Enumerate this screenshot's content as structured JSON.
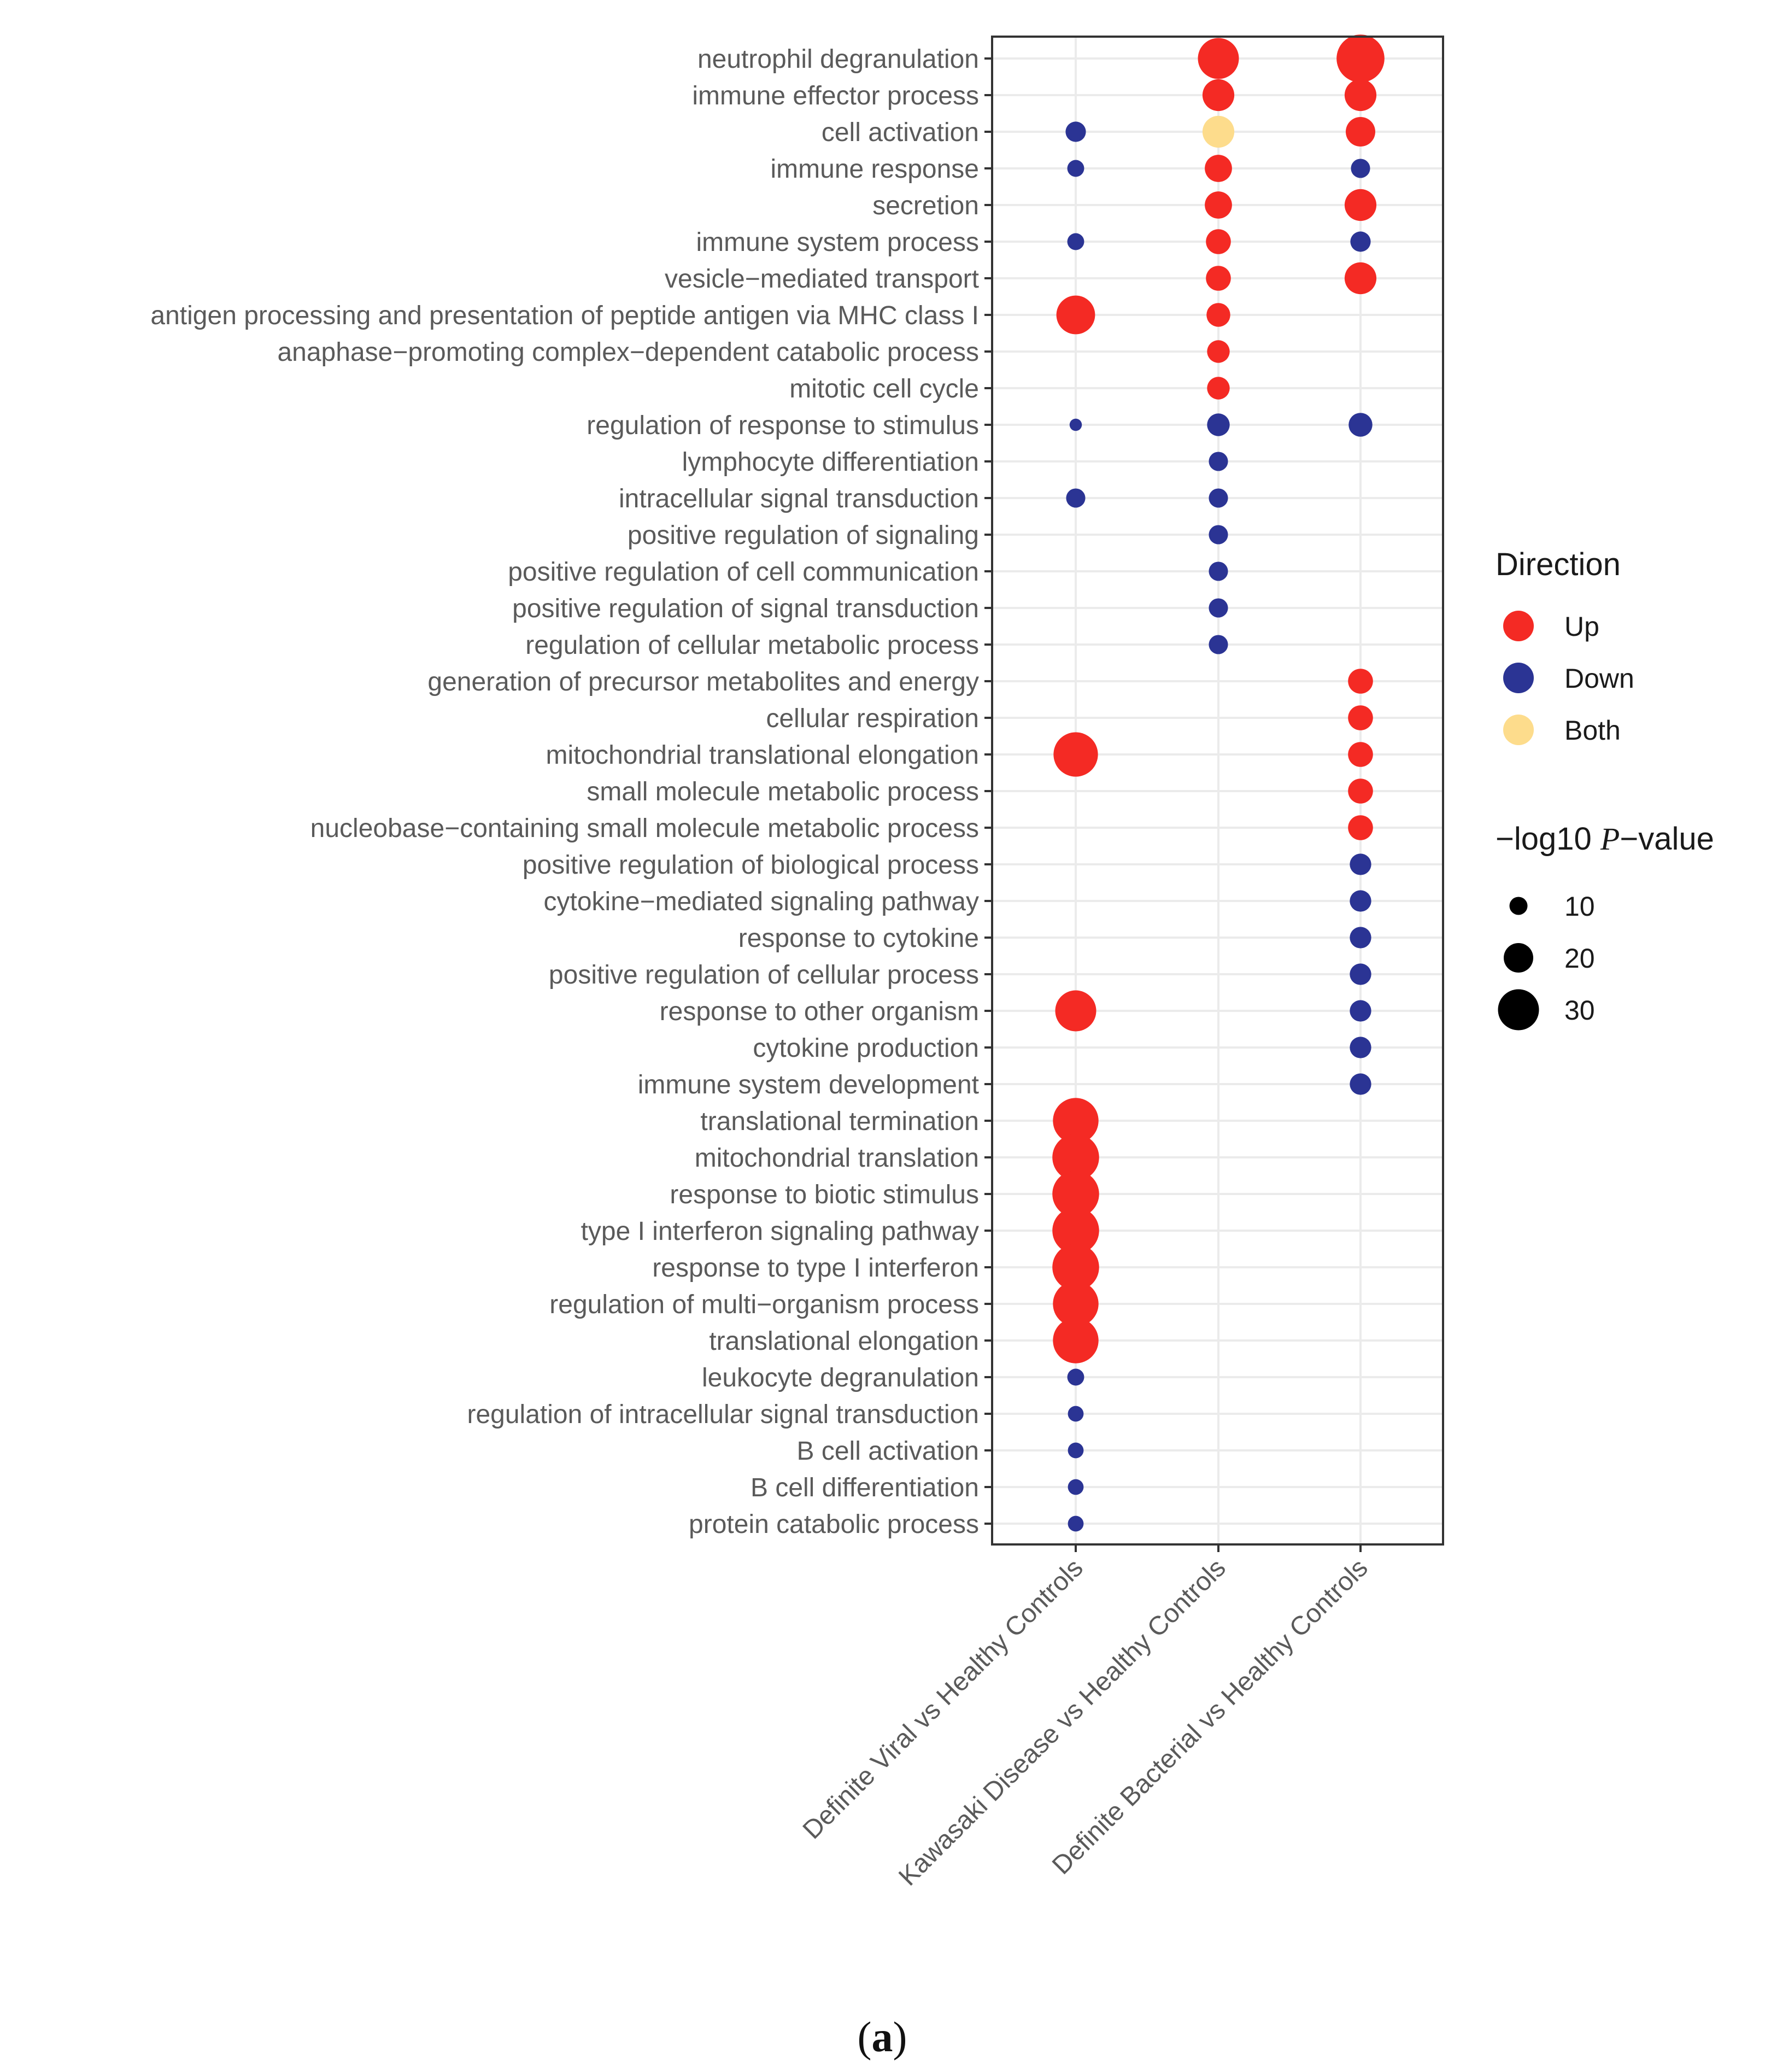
{
  "colors": {
    "up": "#f42a24",
    "down": "#2b3494",
    "both": "#fddc8c",
    "grid": "#ebebeb",
    "panel_border": "#333333",
    "tick": "#333333"
  },
  "caption": {
    "open": "(",
    "letter": "a",
    "close": ")"
  },
  "chart_data": {
    "type": "scatter",
    "subtype": "dot-plot",
    "title": "",
    "xlabel": "",
    "ylabel": "",
    "grid": true,
    "legend_position": "right",
    "comparisons": [
      "Definite Viral vs Healthy Controls",
      "Kawasaki Disease vs Healthy Controls",
      "Definite Bacterial vs Healthy Controls"
    ],
    "terms": [
      "neutrophil degranulation",
      "immune effector process",
      "cell activation",
      "immune response",
      "secretion",
      "immune system process",
      "vesicle−mediated transport",
      "antigen processing and presentation of peptide antigen via MHC class I",
      "anaphase−promoting complex−dependent catabolic process",
      "mitotic cell cycle",
      "regulation of response to stimulus",
      "lymphocyte differentiation",
      "intracellular signal transduction",
      "positive regulation of signaling",
      "positive regulation of cell communication",
      "positive regulation of signal transduction",
      "regulation of cellular metabolic process",
      "generation of precursor metabolites and energy",
      "cellular respiration",
      "mitochondrial translational elongation",
      "small molecule metabolic process",
      "nucleobase−containing small molecule metabolic process",
      "positive regulation of biological process",
      "cytokine−mediated signaling pathway",
      "response to cytokine",
      "positive regulation of cellular process",
      "response to other organism",
      "cytokine production",
      "immune system development",
      "translational termination",
      "mitochondrial translation",
      "response to biotic stimulus",
      "type I interferon signaling pathway",
      "response to type I interferon",
      "regulation of multi−organism process",
      "translational elongation",
      "leukocyte degranulation",
      "regulation of intracellular signal transduction",
      "B cell activation",
      "B cell differentiation",
      "protein catabolic process"
    ],
    "points": [
      {
        "term": "neutrophil degranulation",
        "comparison": "Kawasaki Disease vs Healthy Controls",
        "direction": "Up",
        "neg_log10_p": 30
      },
      {
        "term": "neutrophil degranulation",
        "comparison": "Definite Bacterial vs Healthy Controls",
        "direction": "Up",
        "neg_log10_p": 36
      },
      {
        "term": "immune effector process",
        "comparison": "Kawasaki Disease vs Healthy Controls",
        "direction": "Up",
        "neg_log10_p": 22
      },
      {
        "term": "immune effector process",
        "comparison": "Definite Bacterial vs Healthy Controls",
        "direction": "Up",
        "neg_log10_p": 22
      },
      {
        "term": "cell activation",
        "comparison": "Definite Viral vs Healthy Controls",
        "direction": "Down",
        "neg_log10_p": 12
      },
      {
        "term": "cell activation",
        "comparison": "Kawasaki Disease vs Healthy Controls",
        "direction": "Both",
        "neg_log10_p": 22
      },
      {
        "term": "cell activation",
        "comparison": "Definite Bacterial vs Healthy Controls",
        "direction": "Up",
        "neg_log10_p": 20
      },
      {
        "term": "immune response",
        "comparison": "Definite Viral vs Healthy Controls",
        "direction": "Down",
        "neg_log10_p": 9
      },
      {
        "term": "immune response",
        "comparison": "Kawasaki Disease vs Healthy Controls",
        "direction": "Up",
        "neg_log10_p": 18
      },
      {
        "term": "immune response",
        "comparison": "Definite Bacterial vs Healthy Controls",
        "direction": "Down",
        "neg_log10_p": 11
      },
      {
        "term": "secretion",
        "comparison": "Kawasaki Disease vs Healthy Controls",
        "direction": "Up",
        "neg_log10_p": 18
      },
      {
        "term": "secretion",
        "comparison": "Definite Bacterial vs Healthy Controls",
        "direction": "Up",
        "neg_log10_p": 22
      },
      {
        "term": "immune system process",
        "comparison": "Definite Viral vs Healthy Controls",
        "direction": "Down",
        "neg_log10_p": 9
      },
      {
        "term": "immune system process",
        "comparison": "Kawasaki Disease vs Healthy Controls",
        "direction": "Up",
        "neg_log10_p": 16
      },
      {
        "term": "immune system process",
        "comparison": "Definite Bacterial vs Healthy Controls",
        "direction": "Down",
        "neg_log10_p": 12
      },
      {
        "term": "vesicle−mediated transport",
        "comparison": "Kawasaki Disease vs Healthy Controls",
        "direction": "Up",
        "neg_log10_p": 16
      },
      {
        "term": "vesicle−mediated transport",
        "comparison": "Definite Bacterial vs Healthy Controls",
        "direction": "Up",
        "neg_log10_p": 22
      },
      {
        "term": "antigen processing and presentation of peptide antigen via MHC class I",
        "comparison": "Definite Viral vs Healthy Controls",
        "direction": "Up",
        "neg_log10_p": 28
      },
      {
        "term": "antigen processing and presentation of peptide antigen via MHC class I",
        "comparison": "Kawasaki Disease vs Healthy Controls",
        "direction": "Up",
        "neg_log10_p": 15
      },
      {
        "term": "anaphase−promoting complex−dependent catabolic process",
        "comparison": "Kawasaki Disease vs Healthy Controls",
        "direction": "Up",
        "neg_log10_p": 14
      },
      {
        "term": "mitotic cell cycle",
        "comparison": "Kawasaki Disease vs Healthy Controls",
        "direction": "Up",
        "neg_log10_p": 14
      },
      {
        "term": "regulation of response to stimulus",
        "comparison": "Definite Viral vs Healthy Controls",
        "direction": "Down",
        "neg_log10_p": 5
      },
      {
        "term": "regulation of response to stimulus",
        "comparison": "Kawasaki Disease vs Healthy Controls",
        "direction": "Down",
        "neg_log10_p": 14
      },
      {
        "term": "regulation of response to stimulus",
        "comparison": "Definite Bacterial vs Healthy Controls",
        "direction": "Down",
        "neg_log10_p": 15
      },
      {
        "term": "lymphocyte differentiation",
        "comparison": "Kawasaki Disease vs Healthy Controls",
        "direction": "Down",
        "neg_log10_p": 11
      },
      {
        "term": "intracellular signal transduction",
        "comparison": "Definite Viral vs Healthy Controls",
        "direction": "Down",
        "neg_log10_p": 11
      },
      {
        "term": "intracellular signal transduction",
        "comparison": "Kawasaki Disease vs Healthy Controls",
        "direction": "Down",
        "neg_log10_p": 11
      },
      {
        "term": "positive regulation of signaling",
        "comparison": "Kawasaki Disease vs Healthy Controls",
        "direction": "Down",
        "neg_log10_p": 11
      },
      {
        "term": "positive regulation of cell communication",
        "comparison": "Kawasaki Disease vs Healthy Controls",
        "direction": "Down",
        "neg_log10_p": 11
      },
      {
        "term": "positive regulation of signal transduction",
        "comparison": "Kawasaki Disease vs Healthy Controls",
        "direction": "Down",
        "neg_log10_p": 11
      },
      {
        "term": "regulation of cellular metabolic process",
        "comparison": "Kawasaki Disease vs Healthy Controls",
        "direction": "Down",
        "neg_log10_p": 11
      },
      {
        "term": "generation of precursor metabolites and energy",
        "comparison": "Definite Bacterial vs Healthy Controls",
        "direction": "Up",
        "neg_log10_p": 16
      },
      {
        "term": "cellular respiration",
        "comparison": "Definite Bacterial vs Healthy Controls",
        "direction": "Up",
        "neg_log10_p": 16
      },
      {
        "term": "mitochondrial translational elongation",
        "comparison": "Definite Viral vs Healthy Controls",
        "direction": "Up",
        "neg_log10_p": 33
      },
      {
        "term": "mitochondrial translational elongation",
        "comparison": "Definite Bacterial vs Healthy Controls",
        "direction": "Up",
        "neg_log10_p": 16
      },
      {
        "term": "small molecule metabolic process",
        "comparison": "Definite Bacterial vs Healthy Controls",
        "direction": "Up",
        "neg_log10_p": 16
      },
      {
        "term": "nucleobase−containing small molecule metabolic process",
        "comparison": "Definite Bacterial vs Healthy Controls",
        "direction": "Up",
        "neg_log10_p": 16
      },
      {
        "term": "positive regulation of biological process",
        "comparison": "Definite Bacterial vs Healthy Controls",
        "direction": "Down",
        "neg_log10_p": 13
      },
      {
        "term": "cytokine−mediated signaling pathway",
        "comparison": "Definite Bacterial vs Healthy Controls",
        "direction": "Down",
        "neg_log10_p": 13
      },
      {
        "term": "response to cytokine",
        "comparison": "Definite Bacterial vs Healthy Controls",
        "direction": "Down",
        "neg_log10_p": 13
      },
      {
        "term": "positive regulation of cellular process",
        "comparison": "Definite Bacterial vs Healthy Controls",
        "direction": "Down",
        "neg_log10_p": 13
      },
      {
        "term": "response to other organism",
        "comparison": "Definite Viral vs Healthy Controls",
        "direction": "Up",
        "neg_log10_p": 30
      },
      {
        "term": "response to other organism",
        "comparison": "Definite Bacterial vs Healthy Controls",
        "direction": "Down",
        "neg_log10_p": 13
      },
      {
        "term": "cytokine production",
        "comparison": "Definite Bacterial vs Healthy Controls",
        "direction": "Down",
        "neg_log10_p": 13
      },
      {
        "term": "immune system development",
        "comparison": "Definite Bacterial vs Healthy Controls",
        "direction": "Down",
        "neg_log10_p": 13
      },
      {
        "term": "translational termination",
        "comparison": "Definite Viral vs Healthy Controls",
        "direction": "Up",
        "neg_log10_p": 34
      },
      {
        "term": "mitochondrial translation",
        "comparison": "Definite Viral vs Healthy Controls",
        "direction": "Up",
        "neg_log10_p": 35
      },
      {
        "term": "response to biotic stimulus",
        "comparison": "Definite Viral vs Healthy Controls",
        "direction": "Up",
        "neg_log10_p": 35
      },
      {
        "term": "type I interferon signaling pathway",
        "comparison": "Definite Viral vs Healthy Controls",
        "direction": "Up",
        "neg_log10_p": 35
      },
      {
        "term": "response to type I interferon",
        "comparison": "Definite Viral vs Healthy Controls",
        "direction": "Up",
        "neg_log10_p": 35
      },
      {
        "term": "regulation of multi−organism process",
        "comparison": "Definite Viral vs Healthy Controls",
        "direction": "Up",
        "neg_log10_p": 34
      },
      {
        "term": "translational elongation",
        "comparison": "Definite Viral vs Healthy Controls",
        "direction": "Up",
        "neg_log10_p": 34
      },
      {
        "term": "leukocyte degranulation",
        "comparison": "Definite Viral vs Healthy Controls",
        "direction": "Down",
        "neg_log10_p": 9
      },
      {
        "term": "regulation of intracellular signal transduction",
        "comparison": "Definite Viral vs Healthy Controls",
        "direction": "Down",
        "neg_log10_p": 8
      },
      {
        "term": "B cell activation",
        "comparison": "Definite Viral vs Healthy Controls",
        "direction": "Down",
        "neg_log10_p": 8
      },
      {
        "term": "B cell differentiation",
        "comparison": "Definite Viral vs Healthy Controls",
        "direction": "Down",
        "neg_log10_p": 8
      },
      {
        "term": "protein catabolic process",
        "comparison": "Definite Viral vs Healthy Controls",
        "direction": "Down",
        "neg_log10_p": 8
      }
    ],
    "legend": {
      "color_title": "Direction",
      "color_items": [
        {
          "label": "Up",
          "key": "up"
        },
        {
          "label": "Down",
          "key": "down"
        },
        {
          "label": "Both",
          "key": "both"
        }
      ],
      "size_title": {
        "prefix": "−log10 ",
        "italic": "P",
        "suffix": "−value"
      },
      "size_items": [
        10,
        20,
        30
      ]
    }
  }
}
